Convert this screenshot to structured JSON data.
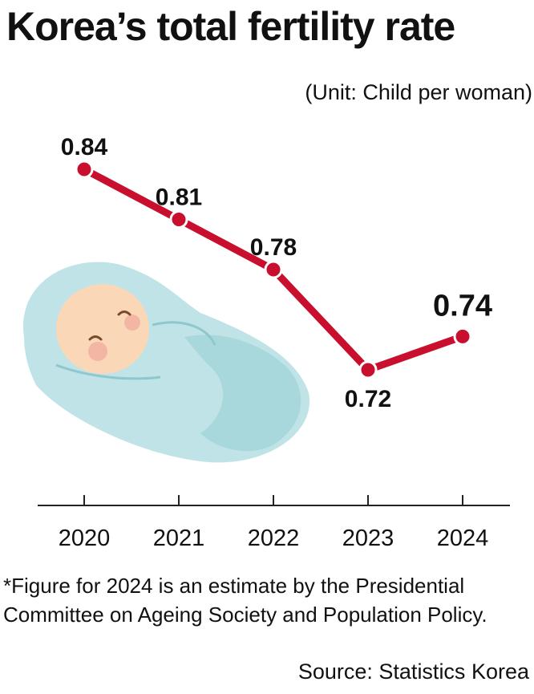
{
  "header": {
    "title": "Korea’s total fertility rate",
    "unit": "(Unit: Child per woman)"
  },
  "chart_data": {
    "type": "line",
    "title": "Korea’s total fertility rate",
    "unit_note": "(Unit: Child per woman)",
    "categories": [
      "2020",
      "2021",
      "2022",
      "2023",
      "2024"
    ],
    "series": [
      {
        "values": [
          0.84,
          0.81,
          0.78,
          0.72,
          0.74
        ],
        "labels": [
          "0.84",
          "0.81",
          "0.78",
          "0.72",
          "0.74"
        ],
        "color": "#c8102e"
      }
    ],
    "highlight_last_label": true,
    "grid": false,
    "legend": "none"
  },
  "illustration": {
    "name": "sleeping-swaddled-baby",
    "colors": {
      "blanket": "#bfe3e6",
      "blanket_shadow": "#9ccfd4",
      "skin": "#fad8b7",
      "cheek": "#f4b6a4"
    }
  },
  "footer": {
    "footnote": "*Figure for 2024 is an estimate by the Presidential Committee on Ageing Society and Population Policy.",
    "source": "Source: Statistics Korea"
  }
}
